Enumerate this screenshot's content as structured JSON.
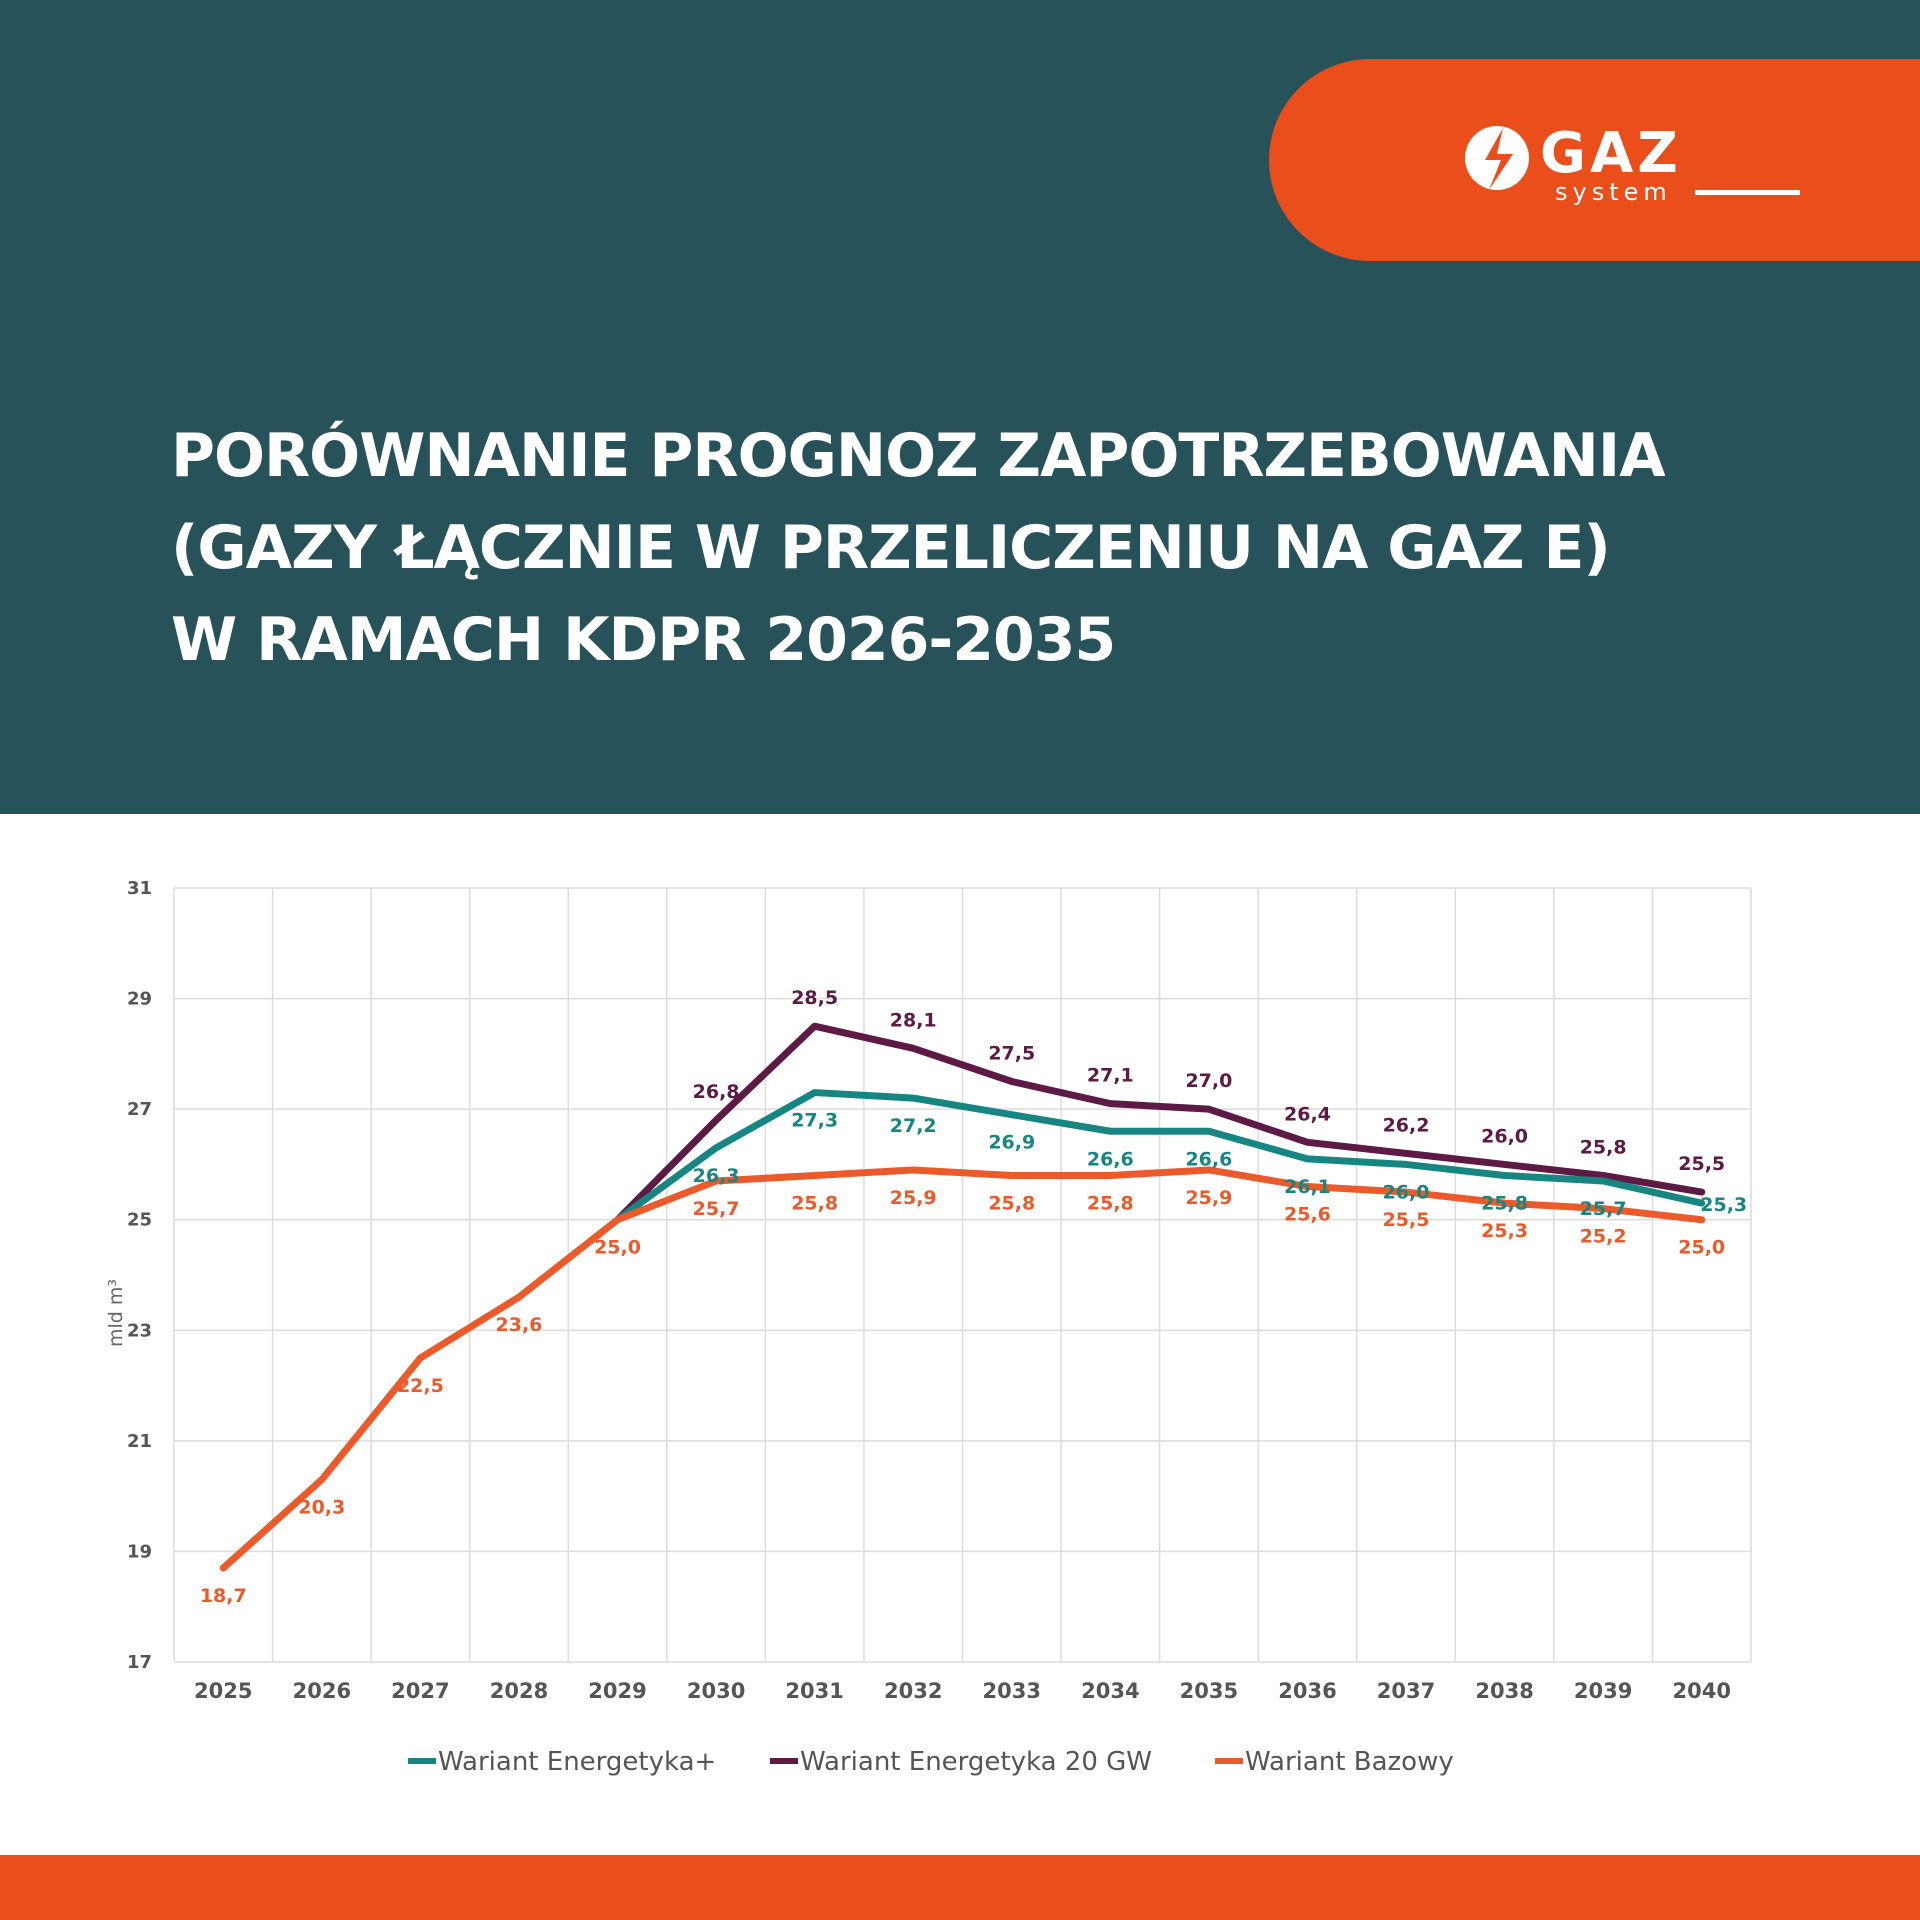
{
  "header": {
    "title_lines": [
      "PORÓWNANIE PROGNOZ ZAPOTRZEBOWANIA",
      "(GAZY ŁĄCZNIE W PRZELICZENIU NA GAZ E)",
      "W RAMACH KDPR 2026-2035"
    ],
    "logo_text": "GAZ system",
    "colors": {
      "background": "#28525a",
      "accent": "#e94e1b"
    }
  },
  "chart_data": {
    "type": "line",
    "title": "",
    "xlabel": "",
    "ylabel": "mld m³",
    "ylim": [
      17,
      31
    ],
    "yticks": [
      17,
      19,
      21,
      23,
      25,
      27,
      29,
      31
    ],
    "grid": true,
    "legend_position": "bottom",
    "categories": [
      "2025",
      "2026",
      "2027",
      "2028",
      "2029",
      "2030",
      "2031",
      "2032",
      "2033",
      "2034",
      "2035",
      "2036",
      "2037",
      "2038",
      "2039",
      "2040"
    ],
    "series": [
      {
        "name": "Wariant Energetyka+",
        "color": "#178683",
        "label_pos": "below",
        "values": [
          null,
          null,
          null,
          null,
          25.0,
          26.3,
          27.3,
          27.2,
          26.9,
          26.6,
          26.6,
          26.1,
          26.0,
          25.8,
          25.7,
          25.3
        ]
      },
      {
        "name": "Wariant Energetyka 20 GW",
        "color": "#5c1a44",
        "label_pos": "above",
        "values": [
          null,
          null,
          null,
          null,
          25.0,
          26.8,
          28.5,
          28.1,
          27.5,
          27.1,
          27.0,
          26.4,
          26.2,
          26.0,
          25.8,
          25.5
        ]
      },
      {
        "name": "Wariant Bazowy",
        "color": "#ea5a2a",
        "label_pos": "below",
        "values": [
          18.7,
          20.3,
          22.5,
          23.6,
          25.0,
          25.7,
          25.8,
          25.9,
          25.8,
          25.8,
          25.9,
          25.6,
          25.5,
          25.3,
          25.2,
          25.0
        ]
      }
    ]
  }
}
